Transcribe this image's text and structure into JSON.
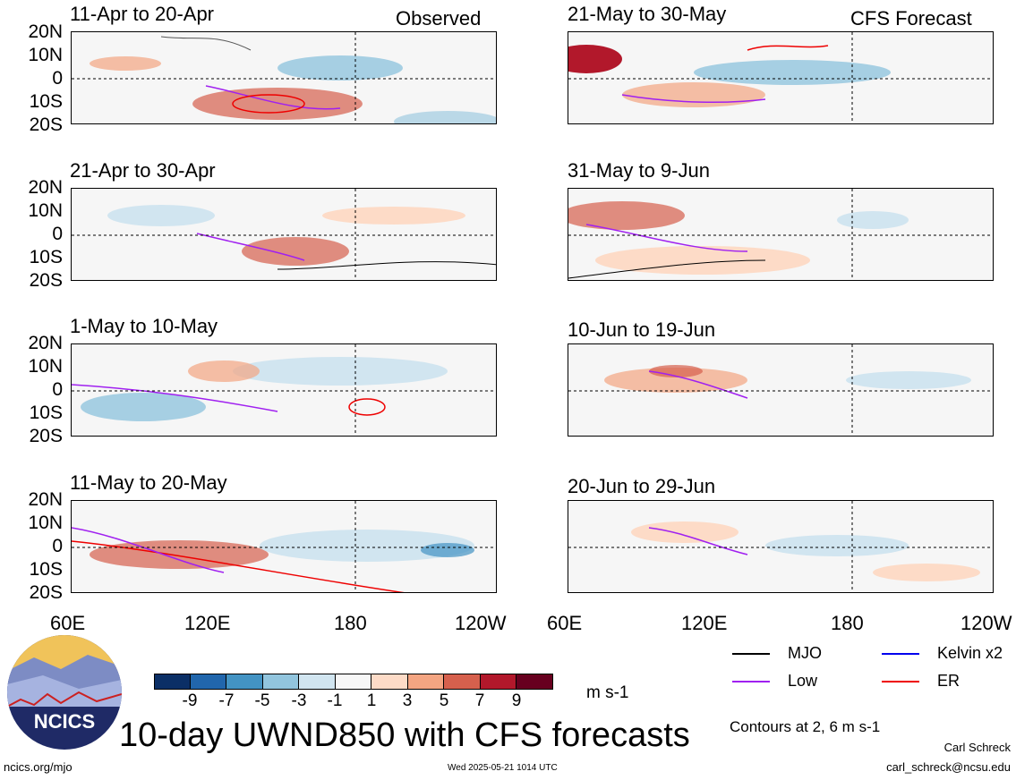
{
  "observed_label": "Observed",
  "forecast_label": "CFS Forecast",
  "lat_labels": [
    "20N",
    "10N",
    "0",
    "10S",
    "20S"
  ],
  "lon_labels": [
    "60E",
    "120E",
    "180",
    "120W"
  ],
  "panels_left": [
    {
      "title": "11-Apr to 20-Apr"
    },
    {
      "title": "21-Apr to 30-Apr"
    },
    {
      "title": "1-May to 10-May"
    },
    {
      "title": "11-May to 20-May"
    }
  ],
  "panels_right": [
    {
      "title": "21-May to 30-May"
    },
    {
      "title": "31-May to 9-Jun"
    },
    {
      "title": "10-Jun to 19-Jun"
    },
    {
      "title": "20-Jun to 29-Jun"
    }
  ],
  "colorbar": {
    "unit": "m s-1",
    "ticks": [
      "-9",
      "-7",
      "-5",
      "-3",
      "-1",
      "1",
      "3",
      "5",
      "7",
      "9"
    ],
    "colors": [
      "#0b2f66",
      "#2166ac",
      "#4393c3",
      "#92c5de",
      "#d1e5f0",
      "#f7f7f7",
      "#fddbc7",
      "#f4a582",
      "#d6604d",
      "#b2182b",
      "#67001f"
    ]
  },
  "legend": [
    {
      "label": "MJO",
      "color": "#000000"
    },
    {
      "label": "Kelvin x2",
      "color": "#0000ee"
    },
    {
      "label": "Low",
      "color": "#a020f0"
    },
    {
      "label": "ER",
      "color": "#ee0000"
    }
  ],
  "contour_note": "Contours at 2, 6 m s-1",
  "title": "10-day UWND850 with CFS forecasts",
  "logo_text": "NCICS",
  "url": "ncics.org/mjo",
  "timestamp": "Wed 2025-05-21 1014 UTC",
  "author": "Carl Schreck",
  "email": "carl_schreck@ncsu.edu"
}
